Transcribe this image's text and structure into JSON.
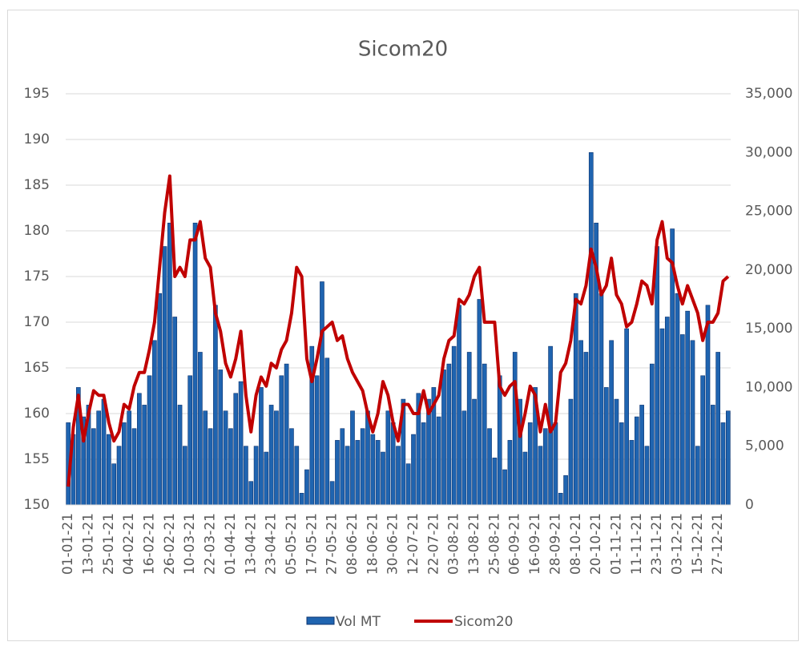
{
  "chart_data": {
    "type": "combo",
    "title": "Sicom20",
    "categories": [
      "01-01-21",
      null,
      null,
      null,
      "13-01-21",
      null,
      null,
      null,
      "25-01-21",
      null,
      null,
      null,
      "04-02-21",
      null,
      null,
      null,
      "16-02-21",
      null,
      null,
      null,
      "26-02-21",
      null,
      null,
      null,
      "10-03-21",
      null,
      null,
      null,
      "22-03-21",
      null,
      null,
      null,
      "01-04-21",
      null,
      null,
      null,
      "13-04-21",
      null,
      null,
      null,
      "23-04-21",
      null,
      null,
      null,
      "05-05-21",
      null,
      null,
      null,
      "17-05-21",
      null,
      null,
      null,
      "27-05-21",
      null,
      null,
      null,
      "08-06-21",
      null,
      null,
      null,
      "18-06-21",
      null,
      null,
      null,
      "30-06-21",
      null,
      null,
      null,
      "12-07-21",
      null,
      null,
      null,
      "22-07-21",
      null,
      null,
      null,
      "03-08-21",
      null,
      null,
      null,
      "13-08-21",
      null,
      null,
      null,
      "25-08-21",
      null,
      null,
      null,
      "06-09-21",
      null,
      null,
      null,
      "16-09-21",
      null,
      null,
      null,
      "28-09-21",
      null,
      null,
      null,
      "08-10-21",
      null,
      null,
      null,
      "20-10-21",
      null,
      null,
      null,
      "01-11-21",
      null,
      null,
      null,
      "11-11-21",
      null,
      null,
      null,
      "23-11-21",
      null,
      null,
      null,
      "03-12-21",
      null,
      null,
      null,
      "15-12-21",
      null,
      null,
      null,
      "27-12-21",
      null,
      null
    ],
    "series": [
      {
        "name": "Vol MT",
        "type": "bar",
        "axis": "y2",
        "color": "#1f64b0",
        "values": [
          7000,
          6000,
          10000,
          7500,
          8500,
          6500,
          8000,
          9000,
          6000,
          3500,
          5000,
          7000,
          8000,
          6500,
          9500,
          8500,
          11000,
          14000,
          18000,
          22000,
          24000,
          16000,
          8500,
          5000,
          11000,
          24000,
          13000,
          8000,
          6500,
          17000,
          11500,
          8000,
          6500,
          9500,
          10500,
          5000,
          2000,
          5000,
          10000,
          4500,
          8500,
          8000,
          11000,
          12000,
          6500,
          5000,
          1000,
          3000,
          13500,
          11000,
          19000,
          12500,
          2000,
          5500,
          6500,
          5000,
          8000,
          5500,
          6500,
          8000,
          6000,
          5500,
          4500,
          8000,
          7000,
          5000,
          9000,
          3500,
          6000,
          9500,
          7000,
          9000,
          10000,
          7500,
          11500,
          12000,
          13500,
          17000,
          8000,
          13000,
          9000,
          17500,
          12000,
          6500,
          4000,
          11000,
          3000,
          5500,
          13000,
          9000,
          4500,
          7000,
          10000,
          5000,
          6500,
          13500,
          7000,
          1000,
          2500,
          9000,
          18000,
          14000,
          13000,
          30000,
          24000,
          18000,
          10000,
          14000,
          9000,
          7000,
          15000,
          5500,
          7500,
          8500,
          5000,
          12000,
          22000,
          15000,
          16000,
          23500,
          18000,
          14500,
          16500,
          14000,
          5000,
          11000,
          17000,
          8500,
          13000,
          7000,
          8000
        ]
      },
      {
        "name": "Sicom20",
        "type": "line",
        "color": "#c00000",
        "values": [
          152,
          158.5,
          162,
          157,
          160,
          162.5,
          162,
          162,
          159,
          157,
          158,
          161,
          160.5,
          163,
          164.5,
          164.5,
          167,
          170,
          176,
          182,
          186,
          175,
          176,
          175,
          179,
          179,
          181,
          177,
          176,
          171,
          169,
          165.5,
          164,
          166,
          169,
          162,
          158,
          162,
          164,
          163,
          165.5,
          165,
          167,
          168,
          171,
          176,
          175,
          166,
          163.5,
          166,
          169,
          169.5,
          170,
          168,
          168.5,
          166,
          164.5,
          163.5,
          162.5,
          160,
          158,
          160,
          163.5,
          162,
          159,
          157,
          161,
          161,
          160,
          160,
          162.5,
          160,
          161,
          162,
          166,
          168,
          168.5,
          172.5,
          172,
          173,
          175,
          176,
          170,
          170,
          170,
          163,
          162,
          163,
          163.5,
          157.5,
          160,
          163,
          162,
          158,
          161,
          158,
          159,
          164.5,
          165.5,
          168,
          172.5,
          172,
          174,
          178,
          176,
          173,
          174,
          177,
          173,
          172,
          169.5,
          170,
          172,
          174.5,
          174,
          172,
          179,
          181,
          177,
          176.5,
          174,
          172,
          174,
          172.5,
          171,
          168,
          170,
          170,
          171,
          174.5,
          175
        ]
      }
    ],
    "ylim": [
      150,
      195
    ],
    "yticks": [
      150,
      155,
      160,
      165,
      170,
      175,
      180,
      185,
      190,
      195
    ],
    "y2lim": [
      0,
      35000
    ],
    "y2ticks": [
      0,
      {
        "value": 5000,
        "label": "5,000"
      },
      {
        "value": 10000,
        "label": "10,000"
      },
      {
        "value": 15000,
        "label": "15,000"
      },
      {
        "value": 20000,
        "label": "20,000"
      },
      {
        "value": 25000,
        "label": "25,000"
      },
      {
        "value": 30000,
        "label": "30,000"
      },
      {
        "value": 35000,
        "label": "35,000"
      }
    ],
    "grid": true,
    "legend": "bottom"
  }
}
